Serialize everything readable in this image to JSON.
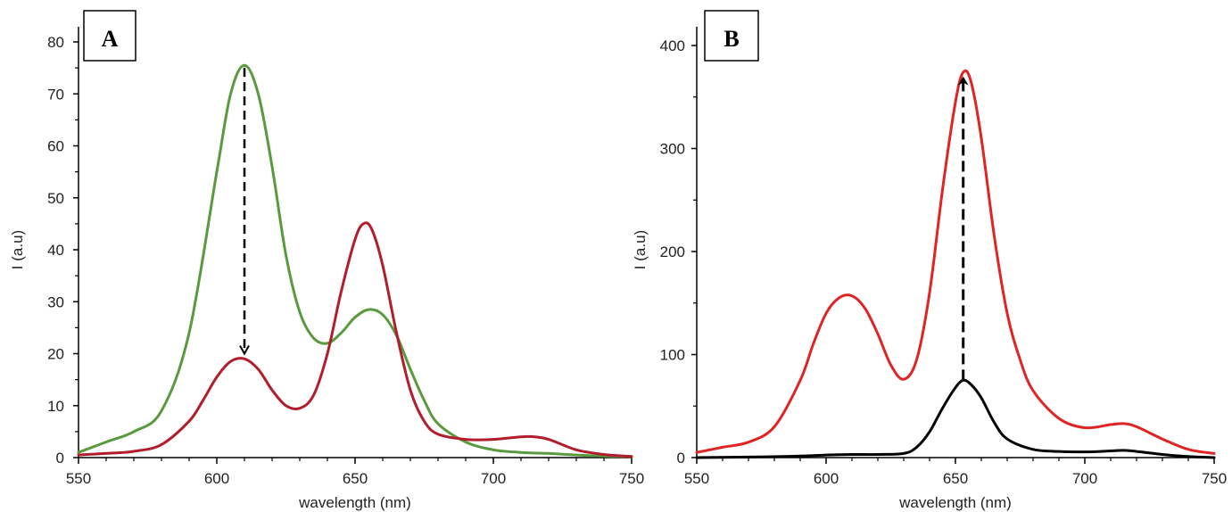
{
  "panels": [
    {
      "panel_label": "A",
      "xlabel": "wavelength (nm)",
      "ylabel": "I (a.u)",
      "x_ticks": [
        "550",
        "600",
        "650",
        "700",
        "750"
      ],
      "y_ticks": [
        "0",
        "10",
        "20",
        "30",
        "40",
        "50",
        "60",
        "70",
        "80"
      ]
    },
    {
      "panel_label": "B",
      "xlabel": "wavelength (nm)",
      "ylabel": "I (a.u)",
      "x_ticks": [
        "550",
        "600",
        "650",
        "700",
        "750"
      ],
      "y_ticks": [
        "0",
        "100",
        "200",
        "300",
        "400"
      ]
    }
  ],
  "chart_data": [
    {
      "type": "line",
      "panel_label": "A",
      "title": "",
      "xlabel": "wavelength (nm)",
      "ylabel": "I (a.u)",
      "xlim": [
        550,
        750
      ],
      "ylim": [
        0,
        80
      ],
      "x_tick_step": 50,
      "y_tick_step": 10,
      "grid": false,
      "legend": "none",
      "series": [
        {
          "color": "#5a9a3e",
          "x": [
            550,
            560,
            570,
            580,
            590,
            600,
            605,
            610,
            615,
            620,
            625,
            630,
            635,
            640,
            645,
            650,
            655,
            660,
            665,
            670,
            675,
            680,
            690,
            700,
            710,
            720,
            730,
            740,
            750
          ],
          "y": [
            1,
            3,
            5,
            9,
            24,
            55,
            70,
            75.5,
            70,
            56,
            39,
            28,
            23,
            22,
            24,
            27,
            28.5,
            27.5,
            23.5,
            17,
            11,
            6.5,
            3,
            1.5,
            1,
            0.8,
            0.5,
            0.3,
            0.2
          ]
        },
        {
          "color": "#b21d2b",
          "x": [
            550,
            560,
            570,
            580,
            590,
            595,
            600,
            605,
            610,
            615,
            620,
            625,
            630,
            635,
            640,
            645,
            650,
            653,
            656,
            660,
            665,
            670,
            675,
            680,
            690,
            700,
            710,
            715,
            720,
            730,
            740,
            750
          ],
          "y": [
            0.5,
            0.8,
            1.2,
            2.5,
            7,
            11,
            15.5,
            18.5,
            19,
            17,
            13,
            10,
            9.5,
            12,
            20,
            32,
            42,
            45,
            44,
            37,
            24,
            13,
            7,
            4.5,
            3.5,
            3.5,
            4,
            4,
            3.5,
            1.5,
            0.6,
            0.2
          ]
        }
      ],
      "annotation": {
        "type": "dashed-arrow",
        "x": 610,
        "y_from": 75,
        "y_to": 20
      }
    },
    {
      "type": "line",
      "panel_label": "B",
      "title": "",
      "xlabel": "wavelength (nm)",
      "ylabel": "I (a.u)",
      "xlim": [
        550,
        750
      ],
      "ylim": [
        0,
        400
      ],
      "x_tick_step": 50,
      "y_tick_step": 100,
      "grid": false,
      "legend": "none",
      "series": [
        {
          "color": "#e02424",
          "x": [
            550,
            560,
            570,
            580,
            590,
            595,
            600,
            605,
            610,
            615,
            620,
            625,
            630,
            635,
            640,
            645,
            650,
            653,
            656,
            660,
            665,
            670,
            675,
            680,
            690,
            700,
            710,
            715,
            720,
            730,
            740,
            750
          ],
          "y": [
            5,
            10,
            15,
            30,
            75,
            110,
            140,
            155,
            157,
            145,
            120,
            90,
            76,
            95,
            160,
            260,
            345,
            374,
            365,
            310,
            215,
            140,
            95,
            65,
            38,
            29,
            32,
            33,
            30,
            18,
            8,
            4
          ]
        },
        {
          "color": "#000000",
          "x": [
            550,
            570,
            590,
            600,
            610,
            620,
            630,
            635,
            640,
            645,
            650,
            653,
            656,
            660,
            665,
            670,
            680,
            690,
            700,
            710,
            715,
            720,
            730,
            740,
            750
          ],
          "y": [
            0,
            0.5,
            1.5,
            2.5,
            3,
            3,
            4,
            10,
            25,
            48,
            68,
            75,
            71,
            58,
            34,
            18,
            8,
            6,
            5.5,
            6.5,
            7,
            6,
            3,
            1,
            0
          ]
        }
      ],
      "annotation": {
        "type": "dashed-arrow",
        "x": 653,
        "y_from": 75,
        "y_to": 370
      }
    }
  ]
}
